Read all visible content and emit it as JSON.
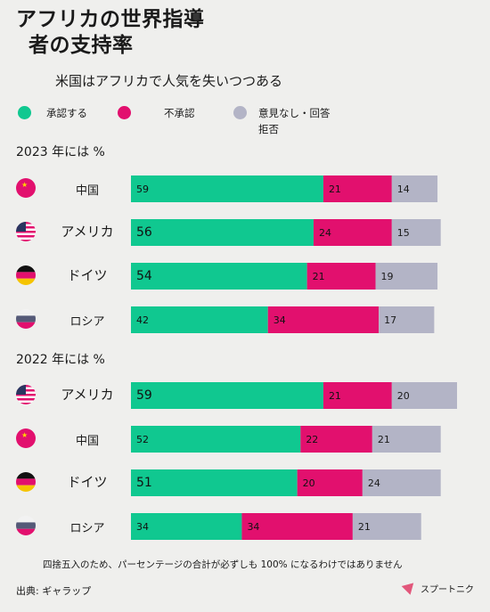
{
  "title": {
    "line1": "アフリカの世界指導",
    "line2": "者の支持率"
  },
  "subtitle": "米国はアフリカで人気を失いつつある",
  "legend": [
    {
      "label": "承認する",
      "color": "#10c890"
    },
    {
      "label": "不承認",
      "color": "#e2106e"
    },
    {
      "label": "意見なし・回答拒否",
      "line1": "意見なし・回答",
      "line2": "拒否",
      "color": "#b3b4c6"
    }
  ],
  "sections": [
    {
      "title": "2023 年には %"
    },
    {
      "title": "2022 年には %"
    }
  ],
  "countries": {
    "china": "中国",
    "usa": "アメリカ",
    "germany": "ドイツ",
    "russia": "ロシア"
  },
  "flag_icons": {
    "china": "china-flag-icon",
    "usa": "usa-flag-icon",
    "germany": "germany-flag-icon",
    "russia": "russia-flag-icon"
  },
  "chart_data": {
    "type": "bar",
    "stacked": true,
    "orientation": "horizontal",
    "unit": "%",
    "series_names": [
      "承認する",
      "不承認",
      "意見なし・回答拒否"
    ],
    "colors": [
      "#10c890",
      "#e2106e",
      "#b3b4c6"
    ],
    "groups": [
      {
        "title": "2023 年には %",
        "rows": [
          {
            "country": "中国",
            "flag": "china",
            "values": [
              59,
              21,
              14
            ]
          },
          {
            "country": "アメリカ",
            "flag": "usa",
            "values": [
              56,
              24,
              15
            ]
          },
          {
            "country": "ドイツ",
            "flag": "germany",
            "values": [
              54,
              21,
              19
            ]
          },
          {
            "country": "ロシア",
            "flag": "russia",
            "values": [
              42,
              34,
              17
            ]
          }
        ]
      },
      {
        "title": "2022 年には %",
        "rows": [
          {
            "country": "アメリカ",
            "flag": "usa",
            "values": [
              59,
              21,
              20
            ]
          },
          {
            "country": "中国",
            "flag": "china",
            "values": [
              52,
              22,
              21
            ]
          },
          {
            "country": "ドイツ",
            "flag": "germany",
            "values": [
              51,
              20,
              24
            ]
          },
          {
            "country": "ロシア",
            "flag": "russia",
            "values": [
              34,
              34,
              21
            ]
          }
        ]
      }
    ]
  },
  "footnote": "四捨五入のため、パーセンテージの合計が必ずしも 100% になるわけではありません",
  "source": "出典: ギャラップ",
  "brand": "スプートニク"
}
